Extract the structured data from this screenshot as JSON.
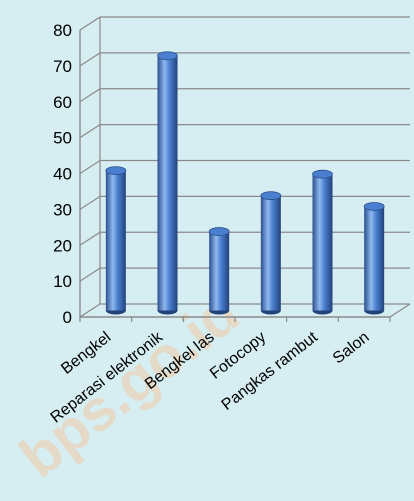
{
  "chart_data": {
    "type": "bar",
    "style": "3d-cylinder",
    "categories": [
      "Bengkel",
      "Reparasi elektronik",
      "Bengkel las",
      "Fotocopy",
      "Pangkas rambut",
      "Salon"
    ],
    "values": [
      39,
      71,
      22,
      32,
      38,
      29
    ],
    "ylim": [
      0,
      80
    ],
    "yticks": [
      0,
      10,
      20,
      30,
      40,
      50,
      60,
      70,
      80
    ],
    "grid": true,
    "legend": "none",
    "watermark": "bps.go.id",
    "colors": {
      "background": "#d6eef1",
      "bar_dark": "#2a4f8f",
      "bar_mid": "#4a7fd0",
      "bar_light": "#8fb8ee",
      "grid": "#8a8a8a"
    }
  }
}
